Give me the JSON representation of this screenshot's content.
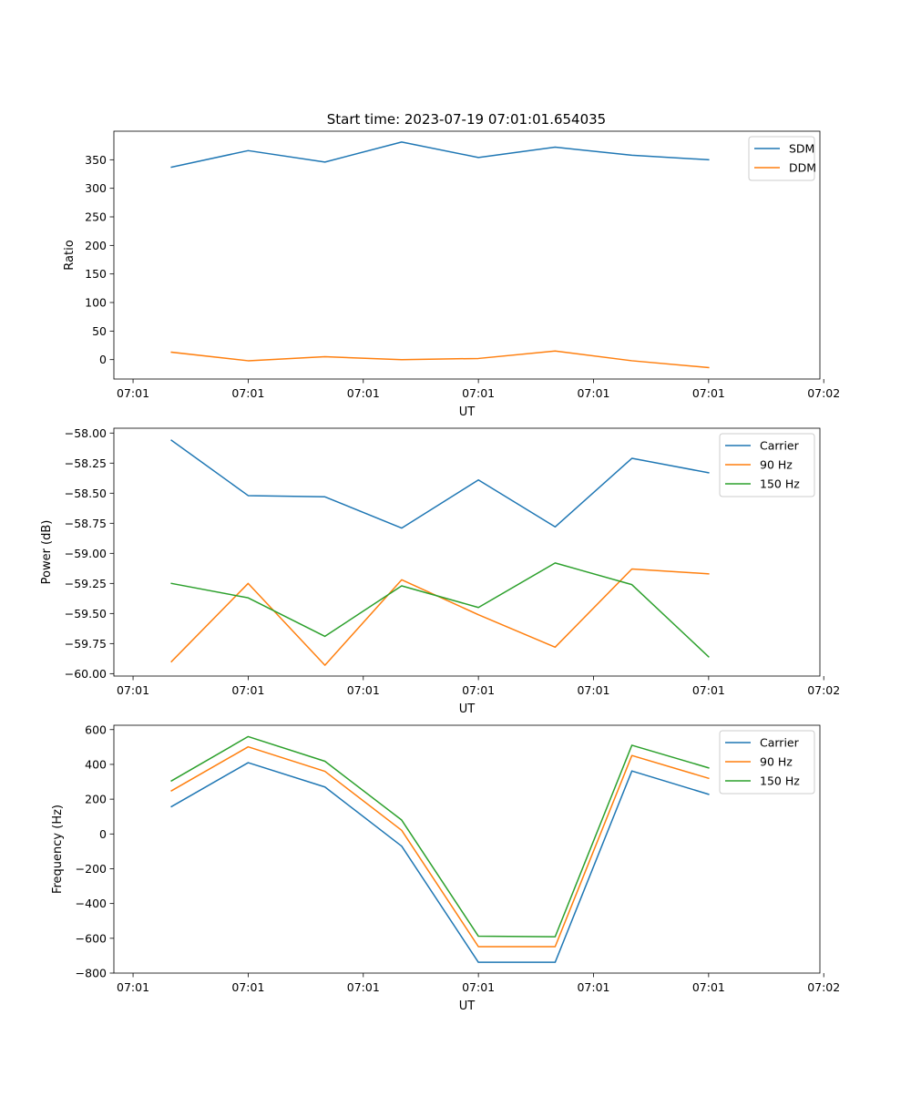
{
  "figure_title": "Start time: 2023-07-19 07:01:01.654035",
  "colors": {
    "blue": "#1f77b4",
    "orange": "#ff7f0e",
    "green": "#2ca02c"
  },
  "chart_data": [
    {
      "type": "line",
      "title": "Start time: 2023-07-19 07:01:01.654035",
      "xlabel": "UT",
      "ylabel": "Ratio",
      "x": [
        1,
        2,
        3,
        4,
        5,
        6,
        7,
        8
      ],
      "xlim": [
        0.25,
        9.45
      ],
      "x_ticks": [
        0.5,
        2,
        3.5,
        5,
        6.5,
        8,
        9.5
      ],
      "x_tick_labels": [
        "07:01",
        "07:01",
        "07:01",
        "07:01",
        "07:01",
        "07:01",
        "07:02"
      ],
      "ylim": [
        -34,
        400
      ],
      "y_ticks": [
        0,
        50,
        100,
        150,
        200,
        250,
        300,
        350
      ],
      "y_tick_labels": [
        "0",
        "50",
        "100",
        "150",
        "200",
        "250",
        "300",
        "350"
      ],
      "legend_position": "top-right",
      "series": [
        {
          "name": "SDM",
          "color": "#1f77b4",
          "values": [
            337,
            366,
            346,
            381,
            354,
            372,
            358,
            350
          ]
        },
        {
          "name": "DDM",
          "color": "#ff7f0e",
          "values": [
            13,
            -2,
            5,
            0,
            2,
            15,
            -2,
            -14
          ]
        }
      ]
    },
    {
      "type": "line",
      "title": "",
      "xlabel": "UT",
      "ylabel": "Power (dB)",
      "x": [
        1,
        2,
        3,
        4,
        5,
        6,
        7,
        8
      ],
      "xlim": [
        0.25,
        9.45
      ],
      "x_ticks": [
        0.5,
        2,
        3.5,
        5,
        6.5,
        8,
        9.5
      ],
      "x_tick_labels": [
        "07:01",
        "07:01",
        "07:01",
        "07:01",
        "07:01",
        "07:01",
        "07:02"
      ],
      "ylim": [
        -60.02,
        -57.96
      ],
      "y_ticks": [
        -58.0,
        -58.25,
        -58.5,
        -58.75,
        -59.0,
        -59.25,
        -59.5,
        -59.75,
        -60.0
      ],
      "y_tick_labels": [
        "−58.00",
        "−58.25",
        "−58.50",
        "−58.75",
        "−59.00",
        "−59.25",
        "−59.50",
        "−59.75",
        "−60.00"
      ],
      "legend_position": "top-right",
      "series": [
        {
          "name": "Carrier",
          "color": "#1f77b4",
          "values": [
            -58.06,
            -58.52,
            -58.53,
            -58.79,
            -58.39,
            -58.78,
            -58.21,
            -58.33
          ]
        },
        {
          "name": "90 Hz",
          "color": "#ff7f0e",
          "values": [
            -59.9,
            -59.25,
            -59.93,
            -59.22,
            -59.51,
            -59.78,
            -59.13,
            -59.17
          ]
        },
        {
          "name": "150 Hz",
          "color": "#2ca02c",
          "values": [
            -59.25,
            -59.37,
            -59.69,
            -59.27,
            -59.45,
            -59.08,
            -59.26,
            -59.86
          ]
        }
      ]
    },
    {
      "type": "line",
      "title": "",
      "xlabel": "UT",
      "ylabel": "Frequency (Hz)",
      "x": [
        1,
        2,
        3,
        4,
        5,
        6,
        7,
        8
      ],
      "xlim": [
        0.25,
        9.45
      ],
      "x_ticks": [
        0.5,
        2,
        3.5,
        5,
        6.5,
        8,
        9.5
      ],
      "x_tick_labels": [
        "07:01",
        "07:01",
        "07:01",
        "07:01",
        "07:01",
        "07:01",
        "07:02"
      ],
      "ylim": [
        -800,
        625
      ],
      "y_ticks": [
        600,
        400,
        200,
        0,
        -200,
        -400,
        -600,
        -800
      ],
      "y_tick_labels": [
        "600",
        "400",
        "200",
        "0",
        "−200",
        "−400",
        "−600",
        "−800"
      ],
      "legend_position": "top-right",
      "series": [
        {
          "name": "Carrier",
          "color": "#1f77b4",
          "values": [
            157,
            410,
            270,
            -70,
            -738,
            -738,
            362,
            228
          ]
        },
        {
          "name": "90 Hz",
          "color": "#ff7f0e",
          "values": [
            248,
            501,
            360,
            21,
            -648,
            -648,
            451,
            320
          ]
        },
        {
          "name": "150 Hz",
          "color": "#2ca02c",
          "values": [
            305,
            560,
            418,
            80,
            -588,
            -591,
            510,
            380
          ]
        }
      ]
    }
  ]
}
